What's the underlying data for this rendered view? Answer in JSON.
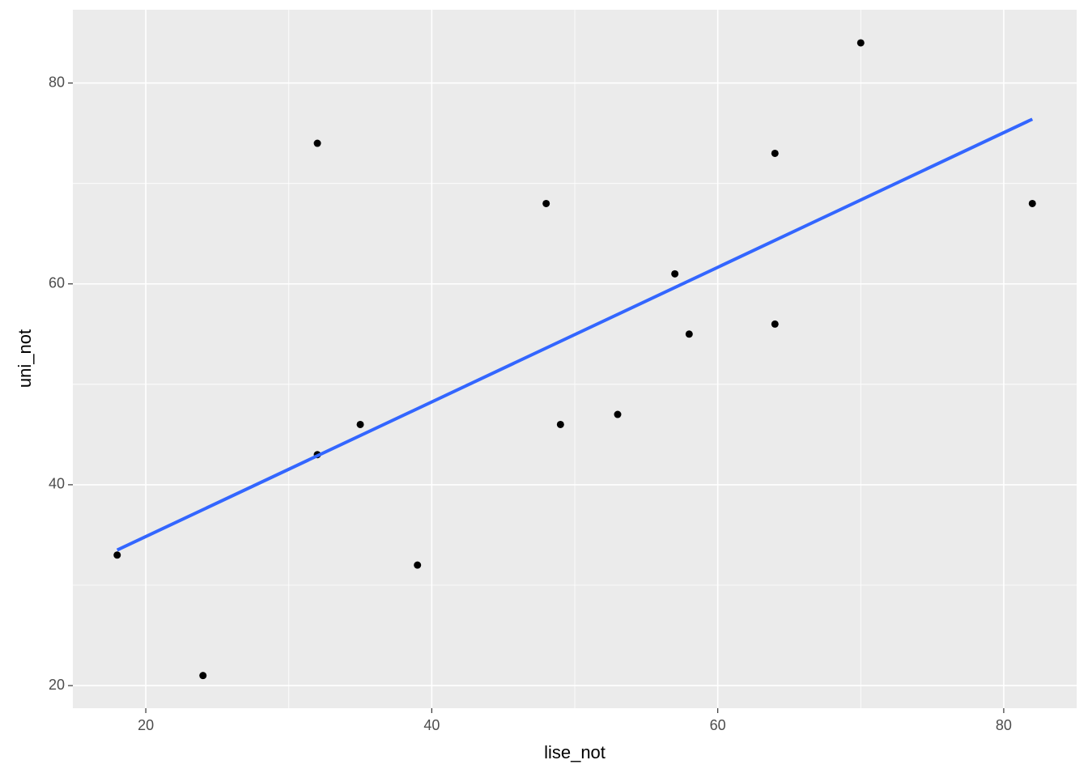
{
  "chart_data": {
    "type": "scatter",
    "x_label": "lise_not",
    "y_label": "uni_not",
    "x": [
      18,
      24,
      32,
      32,
      35,
      39,
      48,
      49,
      53,
      57,
      58,
      64,
      64,
      70,
      82
    ],
    "values": [
      33,
      21,
      74,
      43,
      46,
      32,
      68,
      46,
      47,
      61,
      55,
      73,
      56,
      84,
      68
    ],
    "color": "#000000",
    "trend": {
      "x": [
        18,
        82
      ],
      "y": [
        33.5,
        76.4
      ],
      "color": "#3366FF"
    },
    "xlim": [
      14.9,
      85.1
    ],
    "ylim": [
      17.75,
      87.3
    ],
    "xticks": [
      20,
      40,
      60,
      80
    ],
    "yticks": [
      20,
      40,
      60,
      80
    ],
    "x_minor_grid": [
      30,
      50,
      70
    ],
    "y_minor_grid": [
      30,
      50,
      70
    ],
    "grid": true,
    "panel_color": "#EBEBEB"
  }
}
